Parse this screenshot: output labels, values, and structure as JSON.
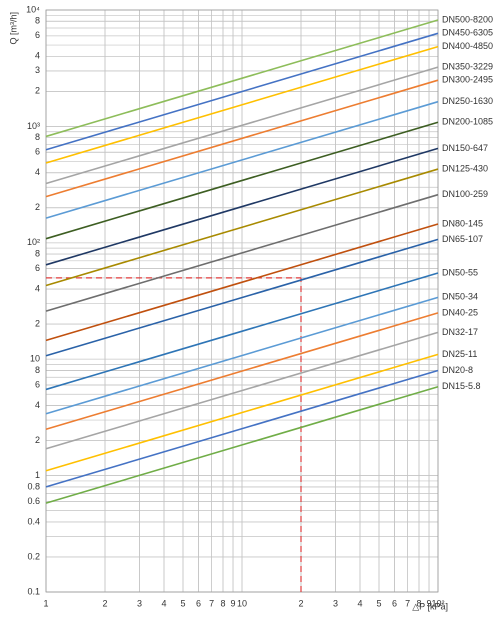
{
  "chart_data": {
    "type": "line",
    "ylabel": "Q [m³/h]",
    "xlabel": "△P [kPa]",
    "log_x": true,
    "log_y": true,
    "grid": true,
    "minor_grid": true,
    "xlim": [
      1,
      100
    ],
    "ylim": [
      0.1,
      10000
    ],
    "xticks": [
      1,
      2,
      3,
      4,
      5,
      6,
      7,
      8,
      9,
      10,
      {
        "value": 20,
        "label": "2"
      },
      {
        "value": 30,
        "label": "3"
      },
      {
        "value": 40,
        "label": "4"
      },
      {
        "value": 50,
        "label": "5"
      },
      {
        "value": 60,
        "label": "6"
      },
      {
        "value": 70,
        "label": "7"
      },
      {
        "value": 80,
        "label": "8"
      },
      {
        "value": 90,
        "label": "9"
      },
      {
        "value": 100,
        "label": "10²"
      }
    ],
    "yticks": [
      0.1,
      0.2,
      0.4,
      0.6,
      0.8,
      1,
      2,
      4,
      6,
      8,
      10,
      {
        "value": 20,
        "label": "2"
      },
      {
        "value": 40,
        "label": "4"
      },
      {
        "value": 60,
        "label": "6"
      },
      {
        "value": 80,
        "label": "8"
      },
      {
        "value": 100,
        "label": "10²"
      },
      {
        "value": 200,
        "label": "2"
      },
      {
        "value": 400,
        "label": "4"
      },
      {
        "value": 600,
        "label": "6"
      },
      {
        "value": 800,
        "label": "8"
      },
      {
        "value": 1000,
        "label": "10³"
      },
      {
        "value": 2000,
        "label": "2"
      },
      {
        "value": 3000,
        "label": "3"
      },
      {
        "value": 4000,
        "label": "4"
      },
      {
        "value": 6000,
        "label": "6"
      },
      {
        "value": 8000,
        "label": "8"
      },
      {
        "value": 10000,
        "label": "10⁴"
      }
    ],
    "x": [
      1,
      100
    ],
    "series": [
      {
        "name": "DN500-8200",
        "color": "#8dbd5a",
        "values": [
          820,
          8200
        ]
      },
      {
        "name": "DN450-6305",
        "color": "#4472c4",
        "values": [
          630.5,
          6305
        ]
      },
      {
        "name": "DN400-4850",
        "color": "#ffc000",
        "values": [
          485,
          4850
        ]
      },
      {
        "name": "DN350-3229",
        "color": "#a5a5a5",
        "values": [
          322.9,
          3229
        ]
      },
      {
        "name": "DN300-2495",
        "color": "#ed7d31",
        "values": [
          249.5,
          2495
        ]
      },
      {
        "name": "DN250-1630",
        "color": "#5b9bd5",
        "values": [
          163,
          1630
        ]
      },
      {
        "name": "DN200-1085",
        "color": "#3d5e22",
        "values": [
          108.5,
          1085
        ]
      },
      {
        "name": "DN150-647",
        "color": "#1f3864",
        "values": [
          64.7,
          647
        ]
      },
      {
        "name": "DN125-430",
        "color": "#a88a00",
        "values": [
          43,
          430
        ]
      },
      {
        "name": "DN100-259",
        "color": "#6e6e6e",
        "values": [
          25.9,
          259
        ]
      },
      {
        "name": "DN80-145",
        "color": "#c0500e",
        "values": [
          14.5,
          145
        ]
      },
      {
        "name": "DN65-107",
        "color": "#2a62a8",
        "values": [
          10.7,
          107
        ]
      },
      {
        "name": "DN50-55",
        "color": "#2e75b6",
        "values": [
          5.5,
          55
        ]
      },
      {
        "name": "DN50-34",
        "color": "#5b9bd5",
        "values": [
          3.4,
          34
        ]
      },
      {
        "name": "DN40-25",
        "color": "#ed7d31",
        "values": [
          2.5,
          25
        ]
      },
      {
        "name": "DN32-17",
        "color": "#a5a5a5",
        "values": [
          1.7,
          17
        ]
      },
      {
        "name": "DN25-11",
        "color": "#ffc000",
        "values": [
          1.1,
          11
        ]
      },
      {
        "name": "DN20-8",
        "color": "#4472c4",
        "values": [
          0.8,
          8
        ]
      },
      {
        "name": "DN15-5.8",
        "color": "#70ad47",
        "values": [
          0.58,
          5.8
        ]
      }
    ],
    "reference": {
      "x": 20,
      "y": 50,
      "color": "#e03c3c"
    }
  }
}
